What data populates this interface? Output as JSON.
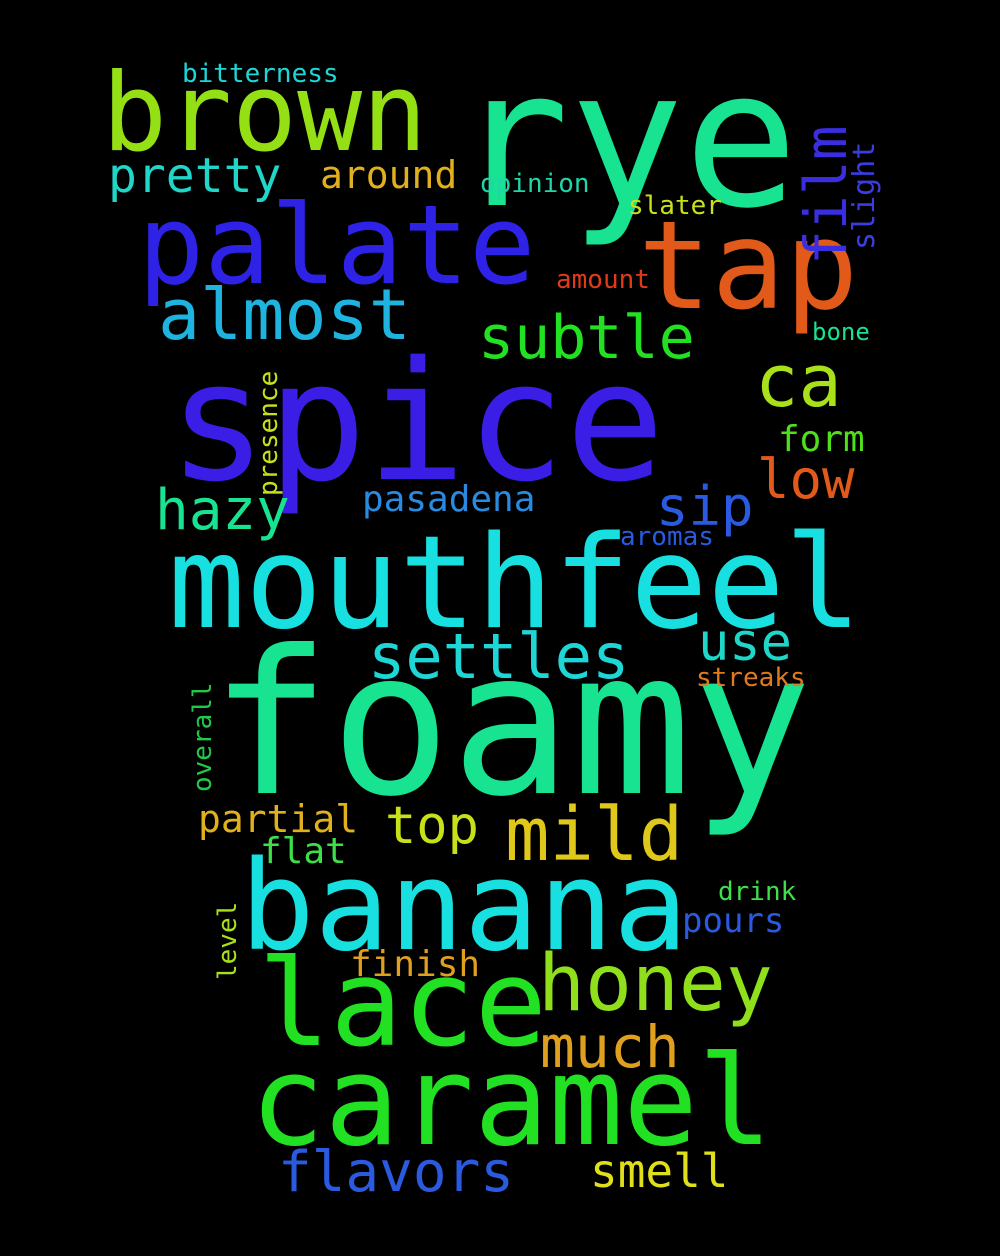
{
  "colors": {
    "background": "#000000"
  },
  "words": [
    {
      "id": "spice",
      "text": "spice",
      "color": "#3a1ee6"
    },
    {
      "id": "foamy",
      "text": "foamy",
      "color": "#17e391"
    },
    {
      "id": "rye",
      "text": "rye",
      "color": "#17e391"
    },
    {
      "id": "mouthfeel",
      "text": "mouthfeel",
      "color": "#19e0e0"
    },
    {
      "id": "banana",
      "text": "banana",
      "color": "#19e0e0"
    },
    {
      "id": "caramel",
      "text": "caramel",
      "color": "#22e022"
    },
    {
      "id": "palate",
      "text": "palate",
      "color": "#2e22e6"
    },
    {
      "id": "brown",
      "text": "brown",
      "color": "#95e015"
    },
    {
      "id": "lace",
      "text": "lace",
      "color": "#22e022"
    },
    {
      "id": "tap",
      "text": "tap",
      "color": "#e25a1a"
    },
    {
      "id": "honey",
      "text": "honey",
      "color": "#8fe01a"
    },
    {
      "id": "almost",
      "text": "almost",
      "color": "#1fb3e0"
    },
    {
      "id": "mild",
      "text": "mild",
      "color": "#e0c81a"
    },
    {
      "id": "settles",
      "text": "settles",
      "color": "#1fd6d6"
    },
    {
      "id": "subtle",
      "text": "subtle",
      "color": "#22e022"
    },
    {
      "id": "ca",
      "text": "ca",
      "color": "#a8e01a"
    },
    {
      "id": "film",
      "text": "film",
      "color": "#3a2ee0"
    },
    {
      "id": "flavors",
      "text": "flavors",
      "color": "#2a5ae0"
    },
    {
      "id": "much",
      "text": "much",
      "color": "#e0a01f"
    },
    {
      "id": "pretty",
      "text": "pretty",
      "color": "#1fd6c8"
    },
    {
      "id": "hazy",
      "text": "hazy",
      "color": "#17e391"
    },
    {
      "id": "top",
      "text": "top",
      "color": "#c8e01a"
    },
    {
      "id": "low",
      "text": "low",
      "color": "#e25a1a"
    },
    {
      "id": "sip",
      "text": "sip",
      "color": "#2a5ae0"
    },
    {
      "id": "use",
      "text": "use",
      "color": "#1fd6c8"
    },
    {
      "id": "smell",
      "text": "smell",
      "color": "#e0e01a"
    },
    {
      "id": "around",
      "text": "around",
      "color": "#e0b01f"
    },
    {
      "id": "pasadena",
      "text": "pasadena",
      "color": "#2a8ae0"
    },
    {
      "id": "partial",
      "text": "partial",
      "color": "#e0b01f"
    },
    {
      "id": "form",
      "text": "form",
      "color": "#4ee01a"
    },
    {
      "id": "flat",
      "text": "flat",
      "color": "#3ee04a"
    },
    {
      "id": "finish",
      "text": "finish",
      "color": "#e0a01f"
    },
    {
      "id": "pours",
      "text": "pours",
      "color": "#2a5ae0"
    },
    {
      "id": "slight",
      "text": "slight",
      "color": "#3a3ee0"
    },
    {
      "id": "opinion",
      "text": "opinion",
      "color": "#1fd6a8"
    },
    {
      "id": "slater",
      "text": "slater",
      "color": "#c8e01a"
    },
    {
      "id": "amount",
      "text": "amount",
      "color": "#e03a1a"
    },
    {
      "id": "bone",
      "text": "bone",
      "color": "#17e391"
    },
    {
      "id": "presence",
      "text": "presence",
      "color": "#c8e01a"
    },
    {
      "id": "aromas",
      "text": "aromas",
      "color": "#2a5ae0"
    },
    {
      "id": "streaks",
      "text": "streaks",
      "color": "#e07a1f"
    },
    {
      "id": "overall",
      "text": "overall",
      "color": "#22c84a"
    },
    {
      "id": "drink",
      "text": "drink",
      "color": "#3ee04a"
    },
    {
      "id": "level",
      "text": "level",
      "color": "#a8e01a"
    },
    {
      "id": "bitterness",
      "text": "bitterness",
      "color": "#1fd6d6"
    }
  ]
}
